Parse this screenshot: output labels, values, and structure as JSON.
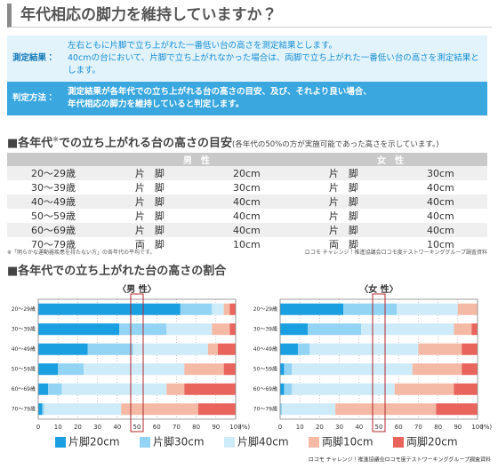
{
  "header": {
    "title": "年代相応の脚力を維持していますか？"
  },
  "notice": {
    "rows": [
      {
        "label": "測定結果：",
        "lines": [
          "左右ともに片脚で立ち上がれた一番低い台の高さを測定結果とします。",
          "40cmの台において、片脚で立ち上がれなかった場合は、両脚で立ち上がれた一番低い台の高さを測定結果とします。"
        ]
      },
      {
        "label": "判定方法：",
        "lines": [
          "測定結果が各年代での立ち上がれる台の高さの目安、及び、それより良い場合、",
          "年代相応の脚力を維持していると判定します。"
        ]
      }
    ]
  },
  "table": {
    "heading": "■各年代",
    "heading_mark": "※",
    "heading_rest": "での立ち上がれる台の高さの目安",
    "subheading": "(各年代の50%の方が実施可能であった高さを示しています。)",
    "columns": [
      "男　性",
      "女　性"
    ],
    "rows": [
      [
        "20～29歳",
        "片　脚",
        "20cm",
        "片　脚",
        "30cm"
      ],
      [
        "30～39歳",
        "片　脚",
        "30cm",
        "片　脚",
        "40cm"
      ],
      [
        "40～49歳",
        "片　脚",
        "40cm",
        "片　脚",
        "40cm"
      ],
      [
        "50～59歳",
        "片　脚",
        "40cm",
        "片　脚",
        "40cm"
      ],
      [
        "60～69歳",
        "片　脚",
        "40cm",
        "片　脚",
        "40cm"
      ],
      [
        "70～79歳",
        "両　脚",
        "10cm",
        "両　脚",
        "10cm"
      ]
    ],
    "footnote": "※「明らかな運動器疾患を持たない方」の各年代の平均です。",
    "source": "ロコモ チャレンジ！推進協議会ロコモ度テストワーキンググループ調査資料"
  },
  "charts_heading": "■各年代での立ち上がれた台の高さの割合",
  "chart_data": [
    {
      "type": "bar",
      "orientation": "horizontal",
      "stacked": true,
      "title": "〈男 性〉",
      "categories": [
        "20～29歳",
        "30～39歳",
        "40～49歳",
        "50～59歳",
        "60～69歳",
        "70～79歳"
      ],
      "series": [
        {
          "name": "片脚20cm",
          "color": "#1a9fe0",
          "values": [
            72,
            41,
            25,
            10,
            5,
            2
          ]
        },
        {
          "name": "片脚30cm",
          "color": "#93d3f3",
          "values": [
            16,
            24,
            23,
            13,
            7,
            1
          ]
        },
        {
          "name": "片脚40cm",
          "color": "#cdebf9",
          "values": [
            6,
            23,
            38,
            51,
            53,
            39
          ]
        },
        {
          "name": "両脚10cm",
          "color": "#f5baa5",
          "values": [
            3,
            9,
            5,
            20,
            9,
            39
          ]
        },
        {
          "name": "両脚20cm",
          "color": "#e9645d",
          "values": [
            3,
            3,
            9,
            6,
            26,
            19
          ]
        }
      ],
      "xlim": [
        0,
        100
      ],
      "xticks": [
        0,
        10,
        20,
        30,
        40,
        50,
        60,
        70,
        80,
        90,
        100
      ],
      "x_label": "(%)",
      "grid": true
    },
    {
      "type": "bar",
      "orientation": "horizontal",
      "stacked": true,
      "title": "〈女 性〉",
      "categories": [
        "20～29歳",
        "30～39歳",
        "40～49歳",
        "50～59歳",
        "60～69歳",
        "70～79歳"
      ],
      "series": [
        {
          "name": "片脚20cm",
          "color": "#1a9fe0",
          "values": [
            32,
            14,
            9,
            2,
            2,
            0
          ]
        },
        {
          "name": "片脚30cm",
          "color": "#93d3f3",
          "values": [
            27,
            27,
            6,
            4,
            4,
            1
          ]
        },
        {
          "name": "片脚40cm",
          "color": "#cdebf9",
          "values": [
            31,
            47,
            55,
            61,
            52,
            27
          ]
        },
        {
          "name": "両脚10cm",
          "color": "#f5baa5",
          "values": [
            10,
            9,
            22,
            25,
            30,
            51
          ]
        },
        {
          "name": "両脚20cm",
          "color": "#e9645d",
          "values": [
            0,
            3,
            8,
            8,
            12,
            21
          ]
        }
      ],
      "xlim": [
        0,
        100
      ],
      "xticks": [
        0,
        10,
        20,
        30,
        40,
        50,
        60,
        70,
        80,
        90,
        100
      ],
      "x_label": "(%)",
      "grid": true
    }
  ],
  "source": "ロコモ チャレンジ！推進協議会ロコモ度テストワーキンググループ調査資料"
}
